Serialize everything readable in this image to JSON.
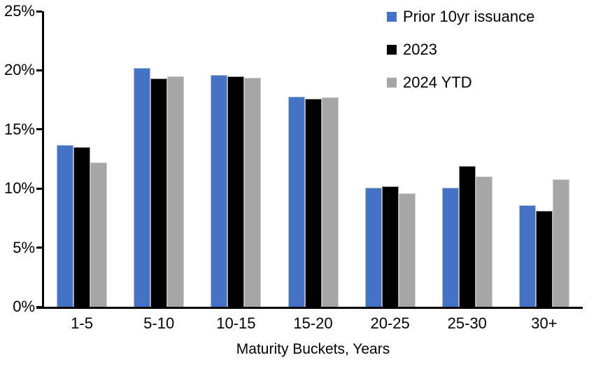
{
  "chart_data": {
    "type": "bar",
    "title": "",
    "categories": [
      "1-5",
      "5-10",
      "10-15",
      "15-20",
      "20-25",
      "25-30",
      "30+"
    ],
    "series": [
      {
        "name": "Prior 10yr issuance",
        "color": "#4472C4",
        "values": [
          13.7,
          20.2,
          19.6,
          17.8,
          10.1,
          10.1,
          8.6
        ]
      },
      {
        "name": "2023",
        "color": "#000000",
        "values": [
          13.5,
          19.3,
          19.5,
          17.6,
          10.2,
          11.9,
          8.1
        ]
      },
      {
        "name": "2024 YTD",
        "color": "#A6A6A6",
        "values": [
          12.2,
          19.5,
          19.4,
          17.7,
          9.6,
          11.0,
          10.8
        ]
      }
    ],
    "xlabel": "Maturity Buckets, Years",
    "ylabel": "",
    "ylim": [
      0,
      25
    ],
    "ytick_step": 5,
    "yticks": [
      {
        "value": 0,
        "label": "0%"
      },
      {
        "value": 5,
        "label": "5%"
      },
      {
        "value": 10,
        "label": "10%"
      },
      {
        "value": 15,
        "label": "15%"
      },
      {
        "value": 20,
        "label": "20%"
      },
      {
        "value": 25,
        "label": "25%"
      }
    ],
    "grid": false,
    "legend_position": "top-right",
    "axis_color": "#000000",
    "background": "#FFFFFF"
  }
}
